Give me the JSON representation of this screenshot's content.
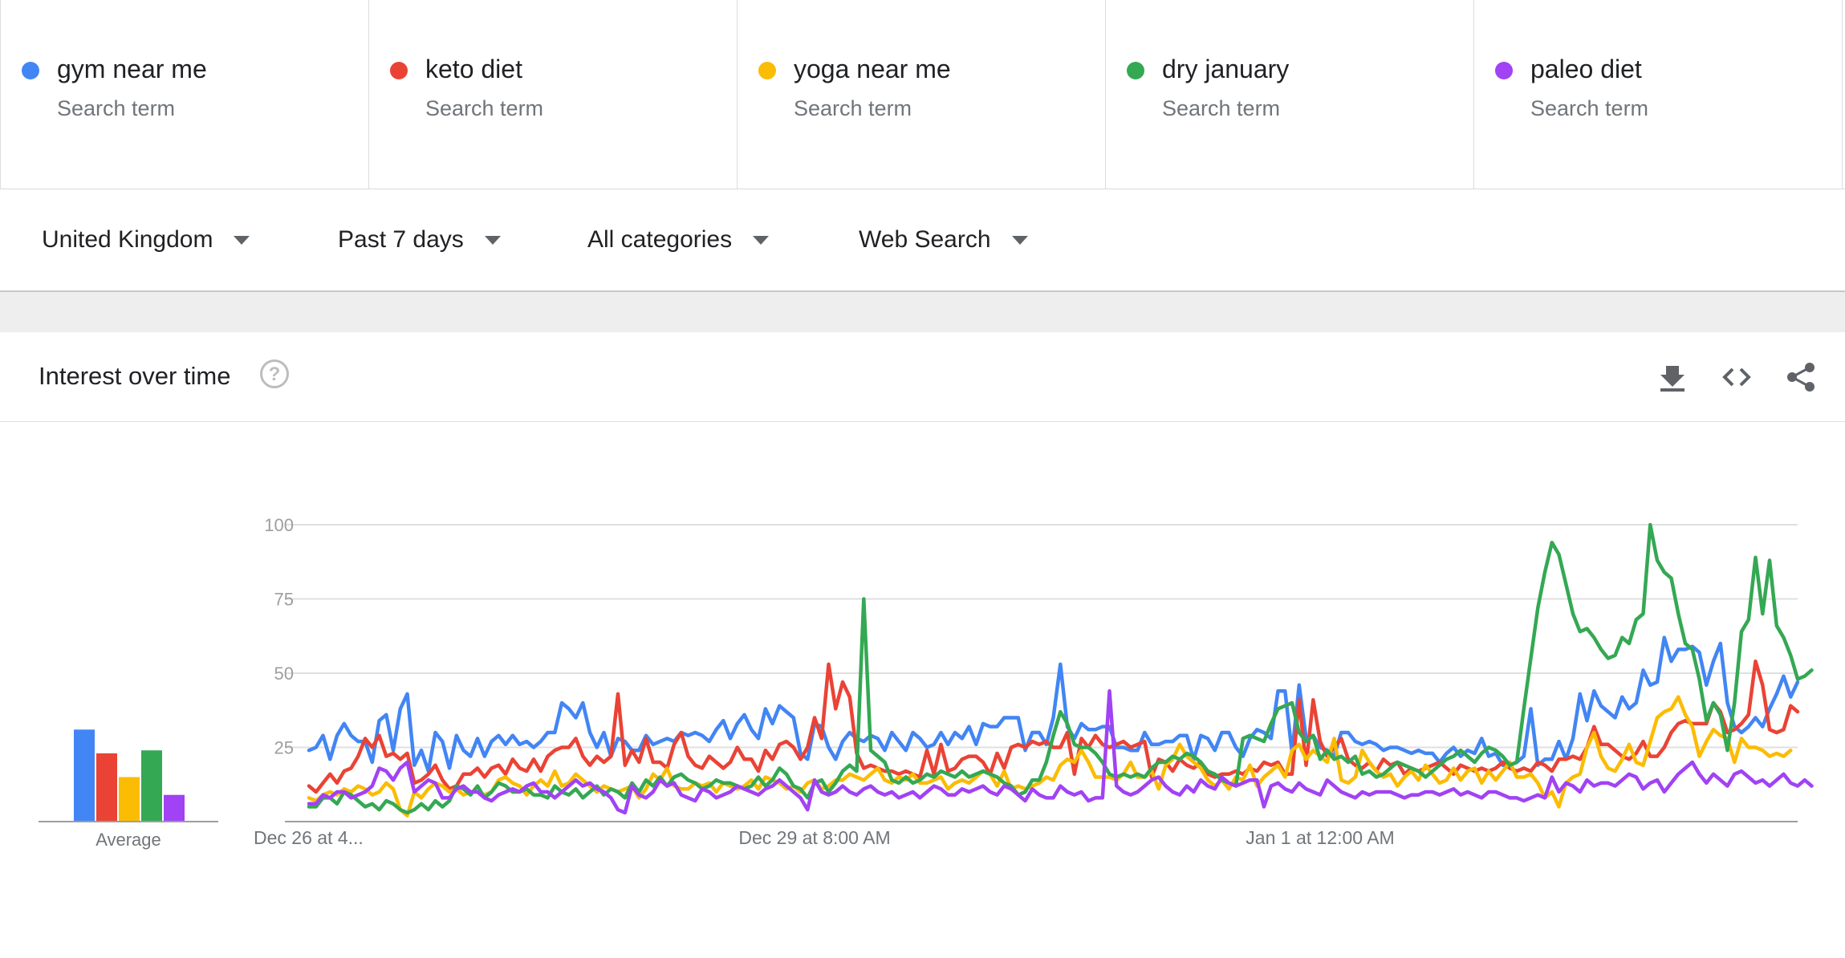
{
  "terms": [
    {
      "name": "gym near me",
      "sub": "Search term",
      "color": "#4285f4"
    },
    {
      "name": "keto diet",
      "sub": "Search term",
      "color": "#ea4335"
    },
    {
      "name": "yoga near me",
      "sub": "Search term",
      "color": "#fbbc04"
    },
    {
      "name": "dry january",
      "sub": "Search term",
      "color": "#34a853"
    },
    {
      "name": "paleo diet",
      "sub": "Search term",
      "color": "#a142f4"
    }
  ],
  "filters": {
    "region": "United Kingdom",
    "period": "Past 7 days",
    "category": "All categories",
    "search_type": "Web Search"
  },
  "card": {
    "title": "Interest over time",
    "icons": [
      "help-icon",
      "download-icon",
      "embed-icon",
      "share-icon"
    ]
  },
  "chart_data": {
    "type": "line",
    "y_ticks": [
      25,
      50,
      75,
      100
    ],
    "ylim": [
      0,
      100
    ],
    "x_tick_labels": [
      "Dec 26 at 4...",
      "Dec 29 at 8:00 AM",
      "Jan 1 at 12:00 AM"
    ],
    "x_tick_index": [
      0,
      72,
      144
    ],
    "grid": true,
    "average_label": "Average",
    "averages": [
      {
        "name": "gym near me",
        "value": 31,
        "color": "#4285f4"
      },
      {
        "name": "keto diet",
        "value": 23,
        "color": "#ea4335"
      },
      {
        "name": "yoga near me",
        "value": 15,
        "color": "#fbbc04"
      },
      {
        "name": "dry january",
        "value": 24,
        "color": "#34a853"
      },
      {
        "name": "paleo diet",
        "value": 9,
        "color": "#a142f4"
      }
    ],
    "series": [
      {
        "name": "gym near me",
        "color": "#4285f4",
        "values": [
          24,
          25,
          29,
          21,
          29,
          33,
          29,
          27,
          27,
          20,
          34,
          36,
          24,
          38,
          43,
          19,
          24,
          17,
          30,
          27,
          18,
          29,
          24,
          22,
          28,
          22,
          27,
          29,
          26,
          29,
          26,
          27,
          25,
          27,
          30,
          30,
          40,
          38,
          35,
          40,
          30,
          25,
          30,
          22,
          28,
          27,
          24,
          24,
          29,
          26,
          27,
          28,
          27,
          30,
          29,
          30,
          29,
          27,
          31,
          34,
          28,
          33,
          36,
          31,
          28,
          38,
          33,
          39,
          37,
          35,
          23,
          21,
          33,
          32,
          25,
          21,
          27,
          30,
          28,
          27,
          29,
          28,
          24,
          30,
          27,
          24,
          30,
          28,
          25,
          26,
          30,
          26,
          30,
          28,
          32,
          26,
          33,
          32,
          32,
          35,
          35,
          35,
          24,
          30,
          30,
          26,
          35,
          53,
          32,
          28,
          33,
          31,
          31,
          32,
          32,
          25,
          25,
          24,
          24,
          30,
          26,
          26,
          27,
          27,
          29,
          29,
          21,
          29,
          28,
          24,
          30,
          30,
          25,
          22,
          28,
          31,
          30,
          28,
          44,
          44,
          23,
          46,
          28,
          29,
          25,
          24,
          22,
          30,
          30,
          27,
          26,
          27,
          26,
          24,
          25,
          25,
          24,
          23,
          24,
          23,
          23,
          20,
          23,
          25,
          22,
          24,
          23,
          28,
          22,
          23,
          19,
          19,
          20,
          22,
          38,
          19,
          21,
          21,
          27,
          21,
          28,
          43,
          34,
          44,
          39,
          37,
          35,
          42,
          38,
          40,
          51,
          46,
          47,
          62,
          54,
          58,
          58,
          59,
          57,
          46,
          54,
          60,
          40,
          32,
          30,
          32,
          35,
          32,
          38,
          43,
          49,
          42,
          47
        ]
      },
      {
        "name": "keto diet",
        "color": "#ea4335",
        "values": [
          12,
          10,
          13,
          16,
          13,
          17,
          18,
          22,
          28,
          25,
          29,
          22,
          23,
          21,
          23,
          13,
          14,
          16,
          19,
          14,
          11,
          12,
          16,
          16,
          18,
          15,
          18,
          19,
          16,
          21,
          18,
          17,
          21,
          17,
          22,
          24,
          25,
          25,
          28,
          22,
          19,
          22,
          20,
          22,
          43,
          19,
          24,
          20,
          28,
          20,
          20,
          18,
          26,
          30,
          22,
          19,
          18,
          22,
          20,
          18,
          20,
          25,
          21,
          21,
          17,
          24,
          21,
          26,
          27,
          25,
          21,
          25,
          35,
          28,
          53,
          38,
          47,
          42,
          23,
          18,
          19,
          18,
          17,
          17,
          16,
          17,
          16,
          15,
          24,
          16,
          26,
          17,
          18,
          21,
          22,
          22,
          20,
          16,
          23,
          18,
          25,
          26,
          25,
          27,
          26,
          27,
          25,
          25,
          30,
          16,
          28,
          25,
          29,
          26,
          25,
          26,
          27,
          25,
          26,
          27,
          15,
          21,
          20,
          17,
          21,
          19,
          18,
          20,
          16,
          15,
          16,
          16,
          17,
          16,
          18,
          17,
          20,
          19,
          20,
          16,
          16,
          41,
          19,
          41,
          27,
          22,
          25,
          28,
          21,
          19,
          18,
          20,
          17,
          21,
          19,
          20,
          16,
          18,
          17,
          18,
          19,
          20,
          18,
          16,
          19,
          18,
          17,
          18,
          17,
          18,
          20,
          18,
          17,
          18,
          17,
          20,
          19,
          17,
          21,
          21,
          22,
          21,
          25,
          32,
          26,
          26,
          24,
          22,
          21,
          23,
          27,
          22,
          22,
          25,
          30,
          33,
          34,
          33,
          33,
          33,
          40,
          37,
          30,
          31,
          33,
          36,
          54,
          46,
          31,
          30,
          31,
          39,
          37
        ]
      },
      {
        "name": "yoga near me",
        "color": "#fbbc04",
        "values": [
          8,
          7,
          9,
          10,
          9,
          11,
          10,
          12,
          11,
          9,
          10,
          13,
          11,
          4,
          2,
          10,
          8,
          11,
          13,
          12,
          10,
          11,
          9,
          10,
          10,
          9,
          10,
          14,
          15,
          13,
          12,
          9,
          12,
          14,
          12,
          17,
          12,
          13,
          16,
          14,
          12,
          10,
          12,
          11,
          10,
          11,
          12,
          8,
          11,
          16,
          14,
          18,
          12,
          11,
          11,
          13,
          12,
          13,
          10,
          13,
          12,
          11,
          12,
          14,
          11,
          15,
          14,
          13,
          11,
          12,
          10,
          13,
          14,
          11,
          12,
          14,
          14,
          16,
          15,
          14,
          16,
          18,
          14,
          13,
          15,
          14,
          16,
          13,
          13,
          14,
          15,
          11,
          13,
          14,
          13,
          15,
          17,
          16,
          12,
          17,
          11,
          12,
          11,
          12,
          13,
          15,
          14,
          19,
          21,
          20,
          24,
          20,
          15,
          15,
          15,
          14,
          16,
          20,
          15,
          15,
          17,
          11,
          19,
          21,
          26,
          22,
          20,
          18,
          14,
          12,
          14,
          11,
          15,
          14,
          19,
          12,
          15,
          17,
          19,
          15,
          24,
          26,
          21,
          24,
          22,
          20,
          28,
          14,
          13,
          15,
          24,
          20,
          17,
          15,
          16,
          12,
          15,
          17,
          14,
          19,
          16,
          13,
          14,
          18,
          14,
          17,
          18,
          13,
          17,
          14,
          17,
          20,
          15,
          15,
          16,
          13,
          8,
          10,
          5,
          13,
          15,
          16,
          25,
          30,
          22,
          18,
          17,
          21,
          26,
          20,
          19,
          27,
          35,
          37,
          38,
          42,
          36,
          32,
          22,
          27,
          31,
          29,
          28,
          20,
          28,
          25,
          25,
          24,
          22,
          23,
          22,
          24
        ]
      },
      {
        "name": "dry january",
        "color": "#34a853",
        "values": [
          5,
          5,
          8,
          8,
          6,
          10,
          9,
          7,
          5,
          6,
          4,
          7,
          6,
          4,
          3,
          4,
          6,
          4,
          7,
          5,
          7,
          12,
          11,
          9,
          12,
          8,
          10,
          13,
          12,
          10,
          10,
          11,
          9,
          9,
          8,
          12,
          10,
          9,
          11,
          8,
          10,
          12,
          9,
          11,
          10,
          8,
          13,
          10,
          14,
          12,
          15,
          12,
          15,
          16,
          14,
          13,
          11,
          12,
          14,
          13,
          13,
          12,
          11,
          12,
          15,
          12,
          14,
          18,
          16,
          12,
          11,
          8,
          13,
          14,
          10,
          13,
          17,
          19,
          17,
          75,
          24,
          22,
          20,
          14,
          13,
          15,
          13,
          14,
          16,
          15,
          17,
          16,
          15,
          17,
          15,
          16,
          17,
          16,
          15,
          13,
          12,
          9,
          10,
          14,
          14,
          20,
          29,
          37,
          33,
          26,
          25,
          25,
          23,
          20,
          16,
          15,
          16,
          15,
          16,
          15,
          18,
          20,
          20,
          22,
          21,
          23,
          22,
          20,
          17,
          16,
          14,
          13,
          12,
          28,
          29,
          28,
          27,
          33,
          38,
          39,
          40,
          30,
          27,
          29,
          21,
          24,
          21,
          22,
          20,
          22,
          16,
          17,
          15,
          16,
          18,
          20,
          19,
          18,
          17,
          15,
          17,
          19,
          21,
          22,
          24,
          22,
          20,
          23,
          25,
          24,
          22,
          19,
          20,
          38,
          55,
          72,
          84,
          94,
          90,
          80,
          70,
          64,
          65,
          62,
          58,
          55,
          56,
          62,
          60,
          68,
          70,
          100,
          88,
          84,
          82,
          70,
          60,
          58,
          48,
          34,
          40,
          36,
          24,
          40,
          64,
          68,
          89,
          70,
          88,
          66,
          62,
          56,
          48,
          49,
          51
        ]
      },
      {
        "name": "paleo diet",
        "color": "#a142f4",
        "values": [
          6,
          6,
          9,
          8,
          10,
          10,
          8,
          9,
          10,
          12,
          18,
          17,
          14,
          18,
          20,
          10,
          12,
          14,
          13,
          8,
          8,
          11,
          12,
          10,
          10,
          8,
          7,
          9,
          10,
          11,
          10,
          12,
          13,
          10,
          10,
          8,
          10,
          12,
          14,
          12,
          13,
          11,
          10,
          8,
          4,
          3,
          12,
          9,
          8,
          10,
          14,
          12,
          13,
          9,
          8,
          7,
          11,
          10,
          8,
          9,
          10,
          12,
          11,
          10,
          9,
          11,
          12,
          14,
          12,
          10,
          8,
          4,
          14,
          10,
          9,
          10,
          12,
          10,
          9,
          11,
          12,
          10,
          9,
          10,
          8,
          9,
          10,
          8,
          10,
          12,
          11,
          9,
          9,
          11,
          10,
          11,
          12,
          10,
          9,
          12,
          11,
          9,
          7,
          11,
          9,
          8,
          8,
          12,
          10,
          9,
          10,
          7,
          8,
          8,
          44,
          12,
          10,
          9,
          10,
          12,
          14,
          15,
          12,
          10,
          9,
          12,
          10,
          14,
          12,
          11,
          15,
          13,
          12,
          13,
          14,
          14,
          5,
          12,
          13,
          11,
          10,
          13,
          11,
          10,
          9,
          14,
          12,
          10,
          9,
          8,
          10,
          9,
          10,
          10,
          10,
          9,
          8,
          9,
          9,
          10,
          10,
          9,
          10,
          11,
          9,
          10,
          9,
          8,
          10,
          10,
          9,
          8,
          8,
          7,
          8,
          9,
          8,
          15,
          10,
          13,
          12,
          10,
          14,
          12,
          13,
          13,
          12,
          14,
          16,
          15,
          11,
          13,
          14,
          10,
          13,
          16,
          18,
          20,
          16,
          13,
          16,
          14,
          12,
          16,
          17,
          15,
          13,
          14,
          12,
          14,
          16,
          13,
          12,
          14,
          12
        ]
      }
    ]
  }
}
